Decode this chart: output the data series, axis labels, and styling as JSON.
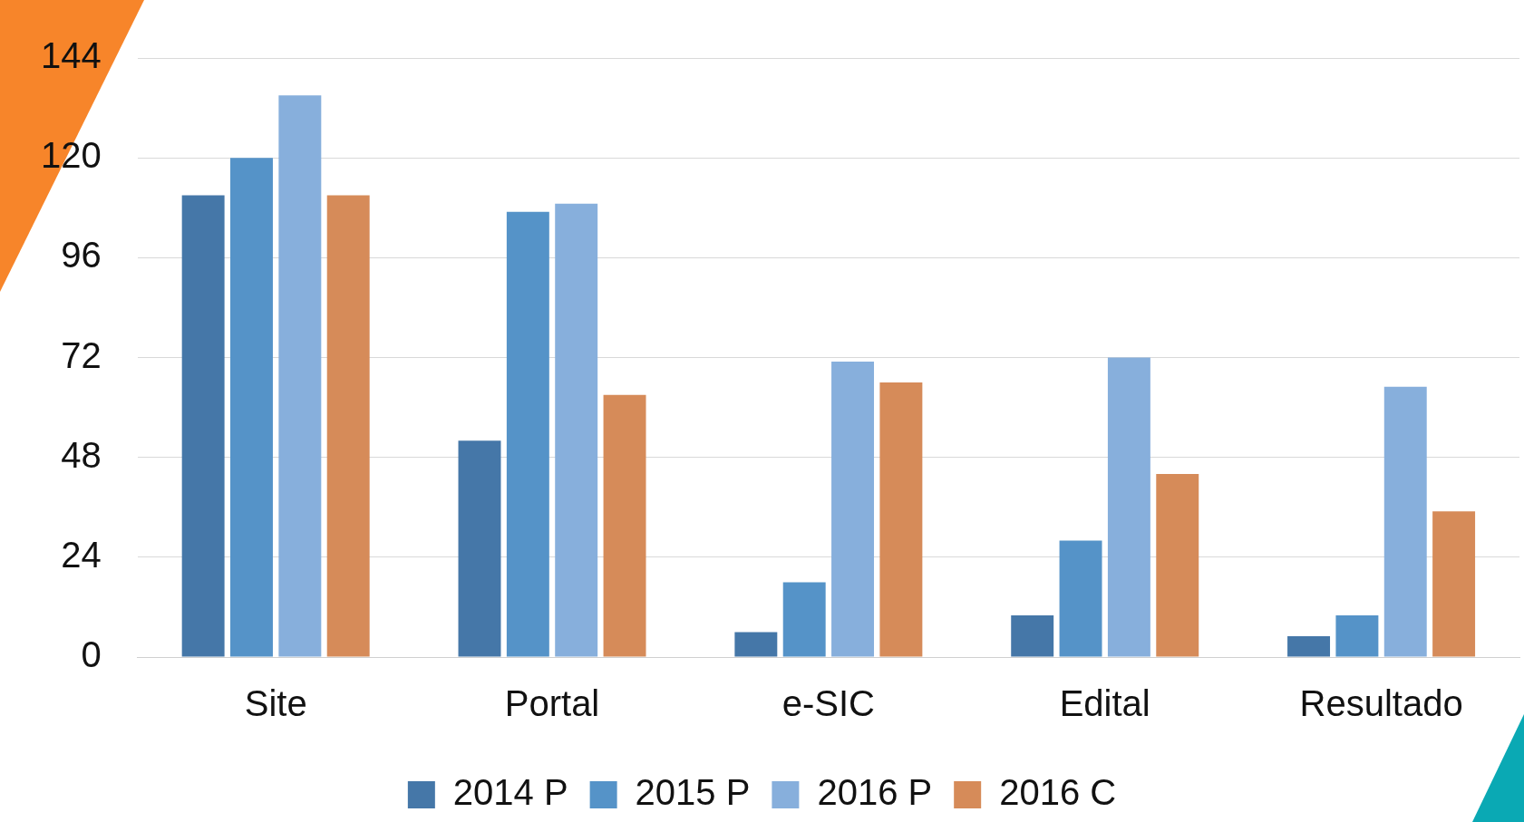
{
  "chart_data": {
    "type": "bar",
    "categories": [
      "Site",
      "Portal",
      "e-SIC",
      "Edital",
      "Resultado"
    ],
    "series": [
      {
        "name": "2014 P",
        "color": "#4577a8",
        "values": [
          111,
          52,
          6,
          10,
          5
        ]
      },
      {
        "name": "2015 P",
        "color": "#5593c8",
        "values": [
          120,
          107,
          18,
          28,
          10
        ]
      },
      {
        "name": "2016 P",
        "color": "#87afdc",
        "values": [
          135,
          109,
          71,
          72,
          65
        ]
      },
      {
        "name": "2016 C",
        "color": "#d68b59",
        "values": [
          111,
          63,
          66,
          44,
          35
        ]
      }
    ],
    "ylim": [
      0,
      144
    ],
    "yticks": [
      0,
      24,
      48,
      72,
      96,
      120,
      144
    ],
    "grid": "y",
    "legend": "bottom"
  }
}
